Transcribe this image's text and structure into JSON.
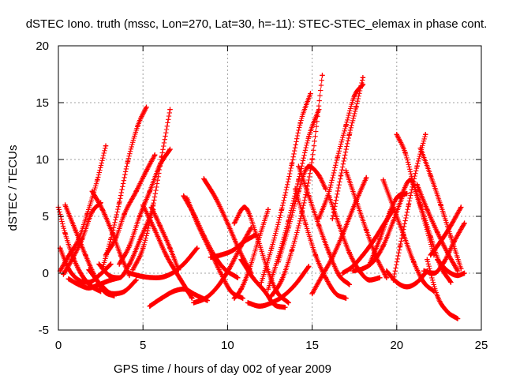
{
  "chart_data": {
    "type": "scatter",
    "title": "dSTEC Iono. truth (mssc, Lon=270, Lat=30, h=-11): STEC-STEC_elemax in phase cont.",
    "xlabel": "GPS time / hours of day 002 of year 2009",
    "ylabel": "dSTEC  / TECUs",
    "xlim": [
      0,
      25
    ],
    "ylim": [
      -5,
      20
    ],
    "xticks": [
      0,
      5,
      10,
      15,
      20,
      25
    ],
    "yticks": [
      -5,
      0,
      5,
      10,
      15,
      20
    ],
    "xtick_labels": [
      "0",
      "5",
      "10",
      "15",
      "20",
      "25"
    ],
    "ytick_labels": [
      "-5",
      "0",
      "5",
      "10",
      "15",
      "20"
    ],
    "grid": true,
    "marker": "+",
    "color": "#ff0000",
    "series": [
      {
        "x": [
          0.0,
          0.4,
          0.9,
          1.4,
          2.0,
          2.5
        ],
        "y": [
          5.8,
          3.5,
          1.3,
          -0.2,
          -1.2,
          -1.6
        ]
      },
      {
        "x": [
          0.1,
          0.6,
          1.2,
          1.8,
          2.4,
          3.1
        ],
        "y": [
          2.2,
          0.4,
          -0.6,
          -0.8,
          -0.2,
          0.8
        ]
      },
      {
        "x": [
          0.1,
          0.6,
          1.2,
          1.7,
          2.3,
          2.8
        ],
        "y": [
          0.2,
          1.5,
          3.0,
          5.2,
          8.2,
          11.2
        ]
      },
      {
        "x": [
          0.4,
          1.0,
          1.6,
          2.2,
          2.7,
          3.3
        ],
        "y": [
          6.0,
          3.8,
          1.6,
          -0.4,
          -1.6,
          -2.0
        ]
      },
      {
        "x": [
          0.3,
          0.8,
          1.4,
          2.0,
          2.5
        ],
        "y": [
          -0.1,
          1.2,
          3.0,
          5.4,
          6.2
        ]
      },
      {
        "x": [
          0.6,
          1.2,
          1.8,
          2.4,
          3.1,
          3.6
        ],
        "y": [
          -0.5,
          -1.0,
          -1.3,
          -1.0,
          -0.6,
          -0.4
        ]
      },
      {
        "x": [
          1.8,
          2.5,
          3.2,
          3.9,
          4.6
        ],
        "y": [
          0.3,
          -1.0,
          -1.8,
          -1.6,
          -0.6
        ]
      },
      {
        "x": [
          2.6,
          3.1,
          3.6,
          4.1,
          4.7,
          5.2
        ],
        "y": [
          0.4,
          3.0,
          6.2,
          9.8,
          13.0,
          14.6
        ]
      },
      {
        "x": [
          2.0,
          2.6,
          3.2,
          3.7,
          4.2
        ],
        "y": [
          7.2,
          5.6,
          3.5,
          1.5,
          -0.2
        ]
      },
      {
        "x": [
          2.4,
          3.0,
          3.6,
          4.2,
          4.9,
          5.6
        ],
        "y": [
          0.8,
          -0.2,
          -0.4,
          0.8,
          3.2,
          5.6
        ]
      },
      {
        "x": [
          2.8,
          3.4,
          3.9,
          4.6,
          5.2,
          5.7
        ],
        "y": [
          1.6,
          3.1,
          5.2,
          7.2,
          9.0,
          10.4
        ]
      },
      {
        "x": [
          3.6,
          4.2,
          4.8,
          5.4,
          6.0,
          6.6
        ],
        "y": [
          0.8,
          2.4,
          5.0,
          7.2,
          9.5,
          10.9
        ]
      },
      {
        "x": [
          4.4,
          5.0,
          5.6,
          6.1,
          6.6
        ],
        "y": [
          0.3,
          2.2,
          6.0,
          10.2,
          14.4
        ]
      },
      {
        "x": [
          5.0,
          5.7,
          6.4,
          7.2,
          7.9
        ],
        "y": [
          6.0,
          3.8,
          1.5,
          -0.5,
          -2.2
        ]
      },
      {
        "x": [
          4.2,
          5.0,
          5.8,
          6.6,
          7.4,
          8.2
        ],
        "y": [
          0.0,
          -0.3,
          -0.4,
          -0.1,
          0.8,
          2.2
        ]
      },
      {
        "x": [
          5.5,
          6.0,
          6.6,
          7.1
        ],
        "y": [
          5.8,
          4.2,
          2.2,
          0.3
        ]
      },
      {
        "x": [
          5.4,
          6.1,
          6.8,
          7.4,
          8.1,
          8.8
        ],
        "y": [
          -2.9,
          -2.2,
          -1.6,
          -1.4,
          -1.9,
          -2.4
        ]
      },
      {
        "x": [
          7.4,
          8.0,
          8.6,
          9.2,
          9.8,
          10.6
        ],
        "y": [
          6.8,
          5.2,
          3.3,
          1.6,
          0.4,
          -0.4
        ]
      },
      {
        "x": [
          7.6,
          8.2,
          8.9,
          9.6,
          10.2,
          10.9
        ],
        "y": [
          6.6,
          4.4,
          2.2,
          0.0,
          -1.6,
          -2.2
        ]
      },
      {
        "x": [
          8.0,
          8.7,
          9.4,
          10.1,
          10.8,
          11.4
        ],
        "y": [
          -2.6,
          -2.2,
          -1.2,
          0.4,
          2.4,
          4.0
        ]
      },
      {
        "x": [
          8.6,
          9.3,
          10.0,
          10.7,
          11.4
        ],
        "y": [
          8.3,
          6.6,
          4.4,
          2.0,
          0.0
        ]
      },
      {
        "x": [
          9.0,
          9.6,
          10.3,
          11.0,
          11.7
        ],
        "y": [
          1.4,
          1.6,
          2.0,
          2.8,
          3.4
        ]
      },
      {
        "x": [
          10.4,
          10.8,
          11.3,
          11.8,
          12.4
        ],
        "y": [
          -2.2,
          -1.4,
          0.4,
          2.8,
          5.6
        ]
      },
      {
        "x": [
          10.8,
          11.5,
          12.2,
          12.8,
          13.4
        ],
        "y": [
          1.2,
          -0.4,
          -1.6,
          -2.8,
          -3.0
        ]
      },
      {
        "x": [
          11.2,
          11.9,
          12.6,
          13.3,
          14.0,
          14.8
        ],
        "y": [
          -2.6,
          -2.9,
          -2.6,
          -2.0,
          -1.0,
          0.6
        ]
      },
      {
        "x": [
          10.4,
          11.0,
          11.7,
          12.3,
          12.9,
          13.6
        ],
        "y": [
          4.4,
          5.8,
          3.4,
          0.6,
          -1.6,
          -2.6
        ]
      },
      {
        "x": [
          12.0,
          12.6,
          13.2,
          13.8,
          14.3,
          14.9
        ],
        "y": [
          -0.8,
          2.2,
          5.6,
          9.6,
          13.2,
          15.8
        ]
      },
      {
        "x": [
          12.4,
          13.0,
          13.6,
          14.2,
          14.8,
          15.4
        ],
        "y": [
          -1.4,
          1.4,
          4.6,
          8.2,
          12.0,
          14.4
        ]
      },
      {
        "x": [
          12.6,
          13.2,
          13.8,
          14.4,
          15.0,
          15.6
        ],
        "y": [
          -2.0,
          -0.6,
          2.0,
          5.4,
          10.0,
          17.4
        ]
      },
      {
        "x": [
          13.0,
          13.6,
          14.2,
          14.8,
          15.4,
          15.8
        ],
        "y": [
          1.0,
          4.0,
          7.2,
          9.4,
          8.6,
          7.4
        ]
      },
      {
        "x": [
          14.0,
          14.6,
          15.2,
          15.8,
          16.4,
          17.0
        ],
        "y": [
          7.4,
          4.4,
          1.6,
          -0.4,
          -1.8,
          -2.2
        ]
      },
      {
        "x": [
          14.2,
          14.8,
          15.4,
          16.0,
          16.6,
          17.2
        ],
        "y": [
          9.4,
          6.8,
          4.2,
          1.8,
          -0.2,
          -1.0
        ]
      },
      {
        "x": [
          15.4,
          16.0,
          16.5,
          17.0,
          17.5,
          18.0
        ],
        "y": [
          4.8,
          7.2,
          10.2,
          13.0,
          15.6,
          16.6
        ]
      },
      {
        "x": [
          15.0,
          15.6,
          16.2,
          16.8,
          17.5,
          18.2
        ],
        "y": [
          -1.8,
          -0.2,
          1.4,
          3.4,
          6.0,
          8.4
        ]
      },
      {
        "x": [
          16.2,
          16.7,
          17.2,
          17.6,
          18.0
        ],
        "y": [
          4.8,
          8.6,
          12.2,
          14.6,
          17.2
        ]
      },
      {
        "x": [
          16.0,
          16.6,
          17.2,
          17.8,
          18.4,
          19.0
        ],
        "y": [
          6.8,
          4.2,
          1.8,
          0.2,
          -0.6,
          -0.4
        ]
      },
      {
        "x": [
          16.8,
          17.4,
          18.0,
          18.6,
          19.2,
          19.8
        ],
        "y": [
          0.0,
          0.6,
          1.6,
          2.8,
          4.2,
          5.6
        ]
      },
      {
        "x": [
          17.0,
          17.6,
          18.2,
          18.8,
          19.4
        ],
        "y": [
          9.0,
          6.4,
          3.8,
          1.4,
          -0.4
        ]
      },
      {
        "x": [
          17.4,
          18.0,
          18.6,
          19.2,
          19.8,
          20.4
        ],
        "y": [
          0.2,
          0.4,
          1.0,
          2.4,
          4.6,
          7.0
        ]
      },
      {
        "x": [
          18.4,
          19.0,
          19.6,
          20.1,
          20.6
        ],
        "y": [
          0.8,
          3.0,
          5.4,
          6.8,
          7.0
        ]
      },
      {
        "x": [
          19.2,
          19.8,
          20.4,
          21.0,
          21.6,
          22.2
        ],
        "y": [
          8.2,
          5.8,
          3.4,
          1.0,
          -0.8,
          -1.6
        ]
      },
      {
        "x": [
          19.4,
          20.0,
          20.6,
          21.2,
          21.8
        ],
        "y": [
          0.2,
          -0.8,
          -1.2,
          -0.8,
          0.2
        ]
      },
      {
        "x": [
          19.8,
          20.2,
          20.7,
          21.2,
          21.7
        ],
        "y": [
          -0.6,
          2.4,
          6.0,
          9.4,
          12.2
        ]
      },
      {
        "x": [
          20.0,
          20.5,
          21.0,
          21.6,
          22.2
        ],
        "y": [
          12.2,
          10.6,
          7.8,
          4.8,
          1.6
        ]
      },
      {
        "x": [
          20.2,
          20.8,
          21.4,
          22.0,
          22.6,
          23.2
        ],
        "y": [
          6.6,
          8.2,
          6.0,
          3.2,
          0.6,
          -0.8
        ]
      },
      {
        "x": [
          21.4,
          22.0,
          22.6,
          23.2,
          23.8
        ],
        "y": [
          11.0,
          8.6,
          6.0,
          3.2,
          0.4
        ]
      },
      {
        "x": [
          21.6,
          22.2,
          22.8,
          23.4,
          24.0
        ],
        "y": [
          0.2,
          0.0,
          1.0,
          2.8,
          4.4
        ]
      },
      {
        "x": [
          21.2,
          21.8,
          22.4,
          23.0,
          23.6
        ],
        "y": [
          7.8,
          5.6,
          3.6,
          1.8,
          0.2
        ]
      },
      {
        "x": [
          21.8,
          22.4,
          23.0,
          23.6
        ],
        "y": [
          1.2,
          -2.0,
          -3.4,
          -4.0
        ]
      },
      {
        "x": [
          22.0,
          22.6,
          23.2,
          23.8
        ],
        "y": [
          1.6,
          2.8,
          4.2,
          5.8
        ]
      },
      {
        "x": [
          22.4,
          23.0,
          23.6,
          24.0
        ],
        "y": [
          1.2,
          0.2,
          -0.2,
          0.0
        ]
      }
    ]
  }
}
